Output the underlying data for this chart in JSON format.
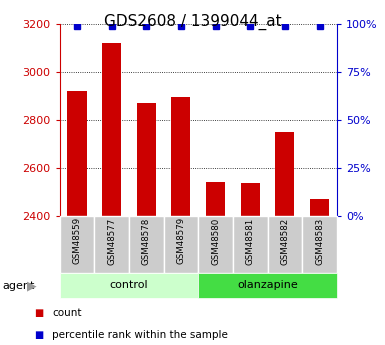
{
  "title": "GDS2608 / 1399044_at",
  "samples": [
    "GSM48559",
    "GSM48577",
    "GSM48578",
    "GSM48579",
    "GSM48580",
    "GSM48581",
    "GSM48582",
    "GSM48583"
  ],
  "counts": [
    2920,
    3120,
    2870,
    2895,
    2540,
    2535,
    2750,
    2470
  ],
  "percentile_ranks": [
    99,
    99,
    99,
    99,
    99,
    99,
    99,
    99
  ],
  "groups": [
    "control",
    "control",
    "control",
    "control",
    "olanzapine",
    "olanzapine",
    "olanzapine",
    "olanzapine"
  ],
  "ylim_left": [
    2400,
    3200
  ],
  "ylim_right": [
    0,
    100
  ],
  "yticks_left": [
    2400,
    2600,
    2800,
    3000,
    3200
  ],
  "yticks_right": [
    0,
    25,
    50,
    75,
    100
  ],
  "bar_color": "#cc0000",
  "dot_color": "#0000cc",
  "bar_bottom": 2400,
  "group_colors": {
    "control": "#ccffcc",
    "olanzapine": "#44dd44"
  },
  "left_tick_color": "#cc0000",
  "right_tick_color": "#0000cc",
  "title_fontsize": 11,
  "tick_fontsize": 8,
  "bg_color": "#ffffff",
  "grid_color": "#000000",
  "sample_bg_color": "#cccccc"
}
